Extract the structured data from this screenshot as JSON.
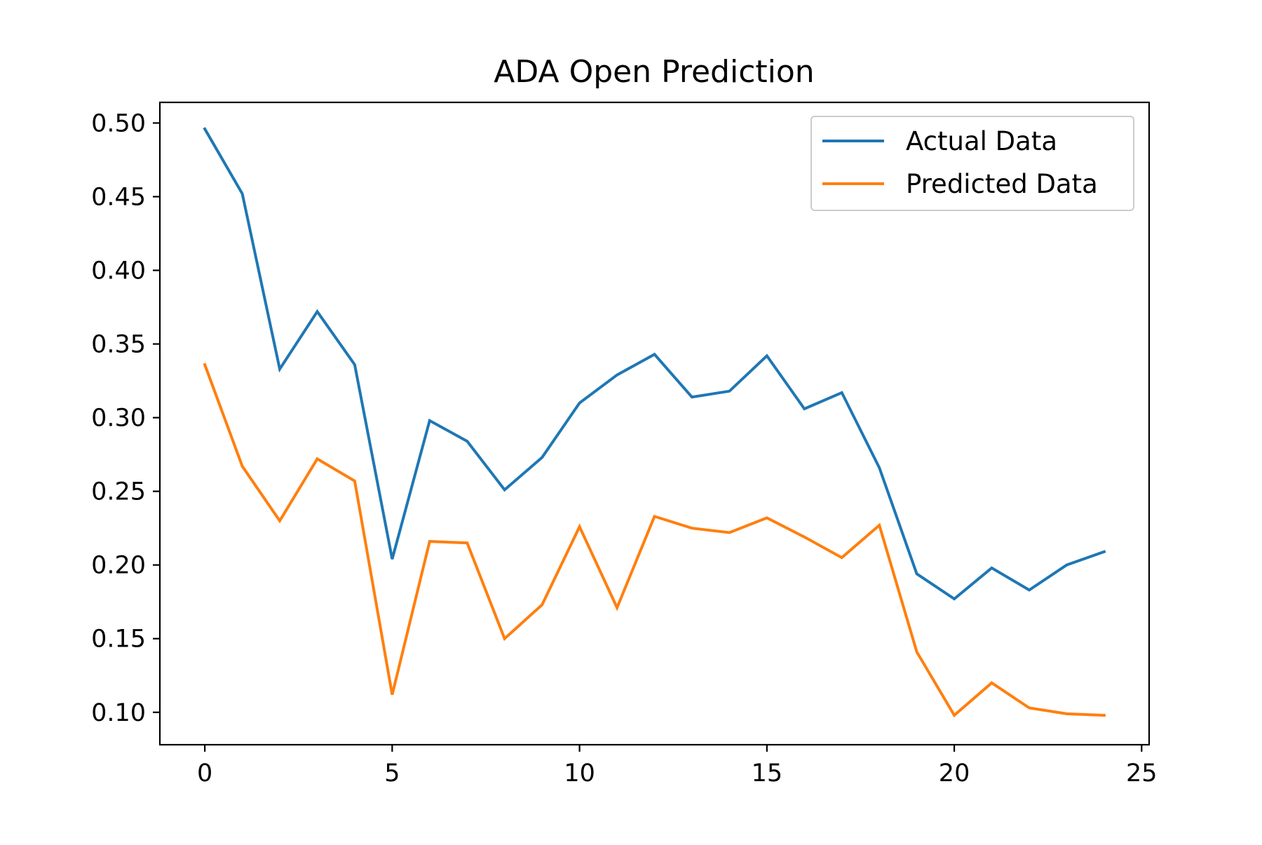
{
  "chart_data": {
    "type": "line",
    "title": "ADA Open Prediction",
    "xlabel": "",
    "ylabel": "",
    "xlim": [
      -1.2,
      25.2
    ],
    "ylim": [
      0.078,
      0.514
    ],
    "xticks": [
      0,
      5,
      10,
      15,
      20,
      25
    ],
    "xtick_labels": [
      "0",
      "5",
      "10",
      "15",
      "20",
      "25"
    ],
    "yticks": [
      0.1,
      0.15,
      0.2,
      0.25,
      0.3,
      0.35,
      0.4,
      0.45,
      0.5
    ],
    "ytick_labels": [
      "0.10",
      "0.15",
      "0.20",
      "0.25",
      "0.30",
      "0.35",
      "0.40",
      "0.45",
      "0.50"
    ],
    "grid": false,
    "legend_position": "top-right",
    "x": [
      0,
      1,
      2,
      3,
      4,
      5,
      6,
      7,
      8,
      9,
      10,
      11,
      12,
      13,
      14,
      15,
      16,
      17,
      18,
      19,
      20,
      21,
      22,
      23,
      24
    ],
    "series": [
      {
        "name": "Actual Data",
        "color": "#1f77b4",
        "values": [
          0.496,
          0.452,
          0.333,
          0.372,
          0.336,
          0.204,
          0.298,
          0.284,
          0.251,
          0.273,
          0.31,
          0.329,
          0.343,
          0.314,
          0.318,
          0.342,
          0.306,
          0.317,
          0.266,
          0.194,
          0.177,
          0.198,
          0.183,
          0.2,
          0.209
        ]
      },
      {
        "name": "Predicted Data",
        "color": "#ff7f0e",
        "values": [
          0.336,
          0.267,
          0.23,
          0.272,
          0.257,
          0.112,
          0.216,
          0.215,
          0.15,
          0.173,
          0.226,
          0.171,
          0.233,
          0.225,
          0.222,
          0.232,
          0.219,
          0.205,
          0.227,
          0.141,
          0.098,
          0.12,
          0.103,
          0.099,
          0.098
        ]
      }
    ]
  }
}
